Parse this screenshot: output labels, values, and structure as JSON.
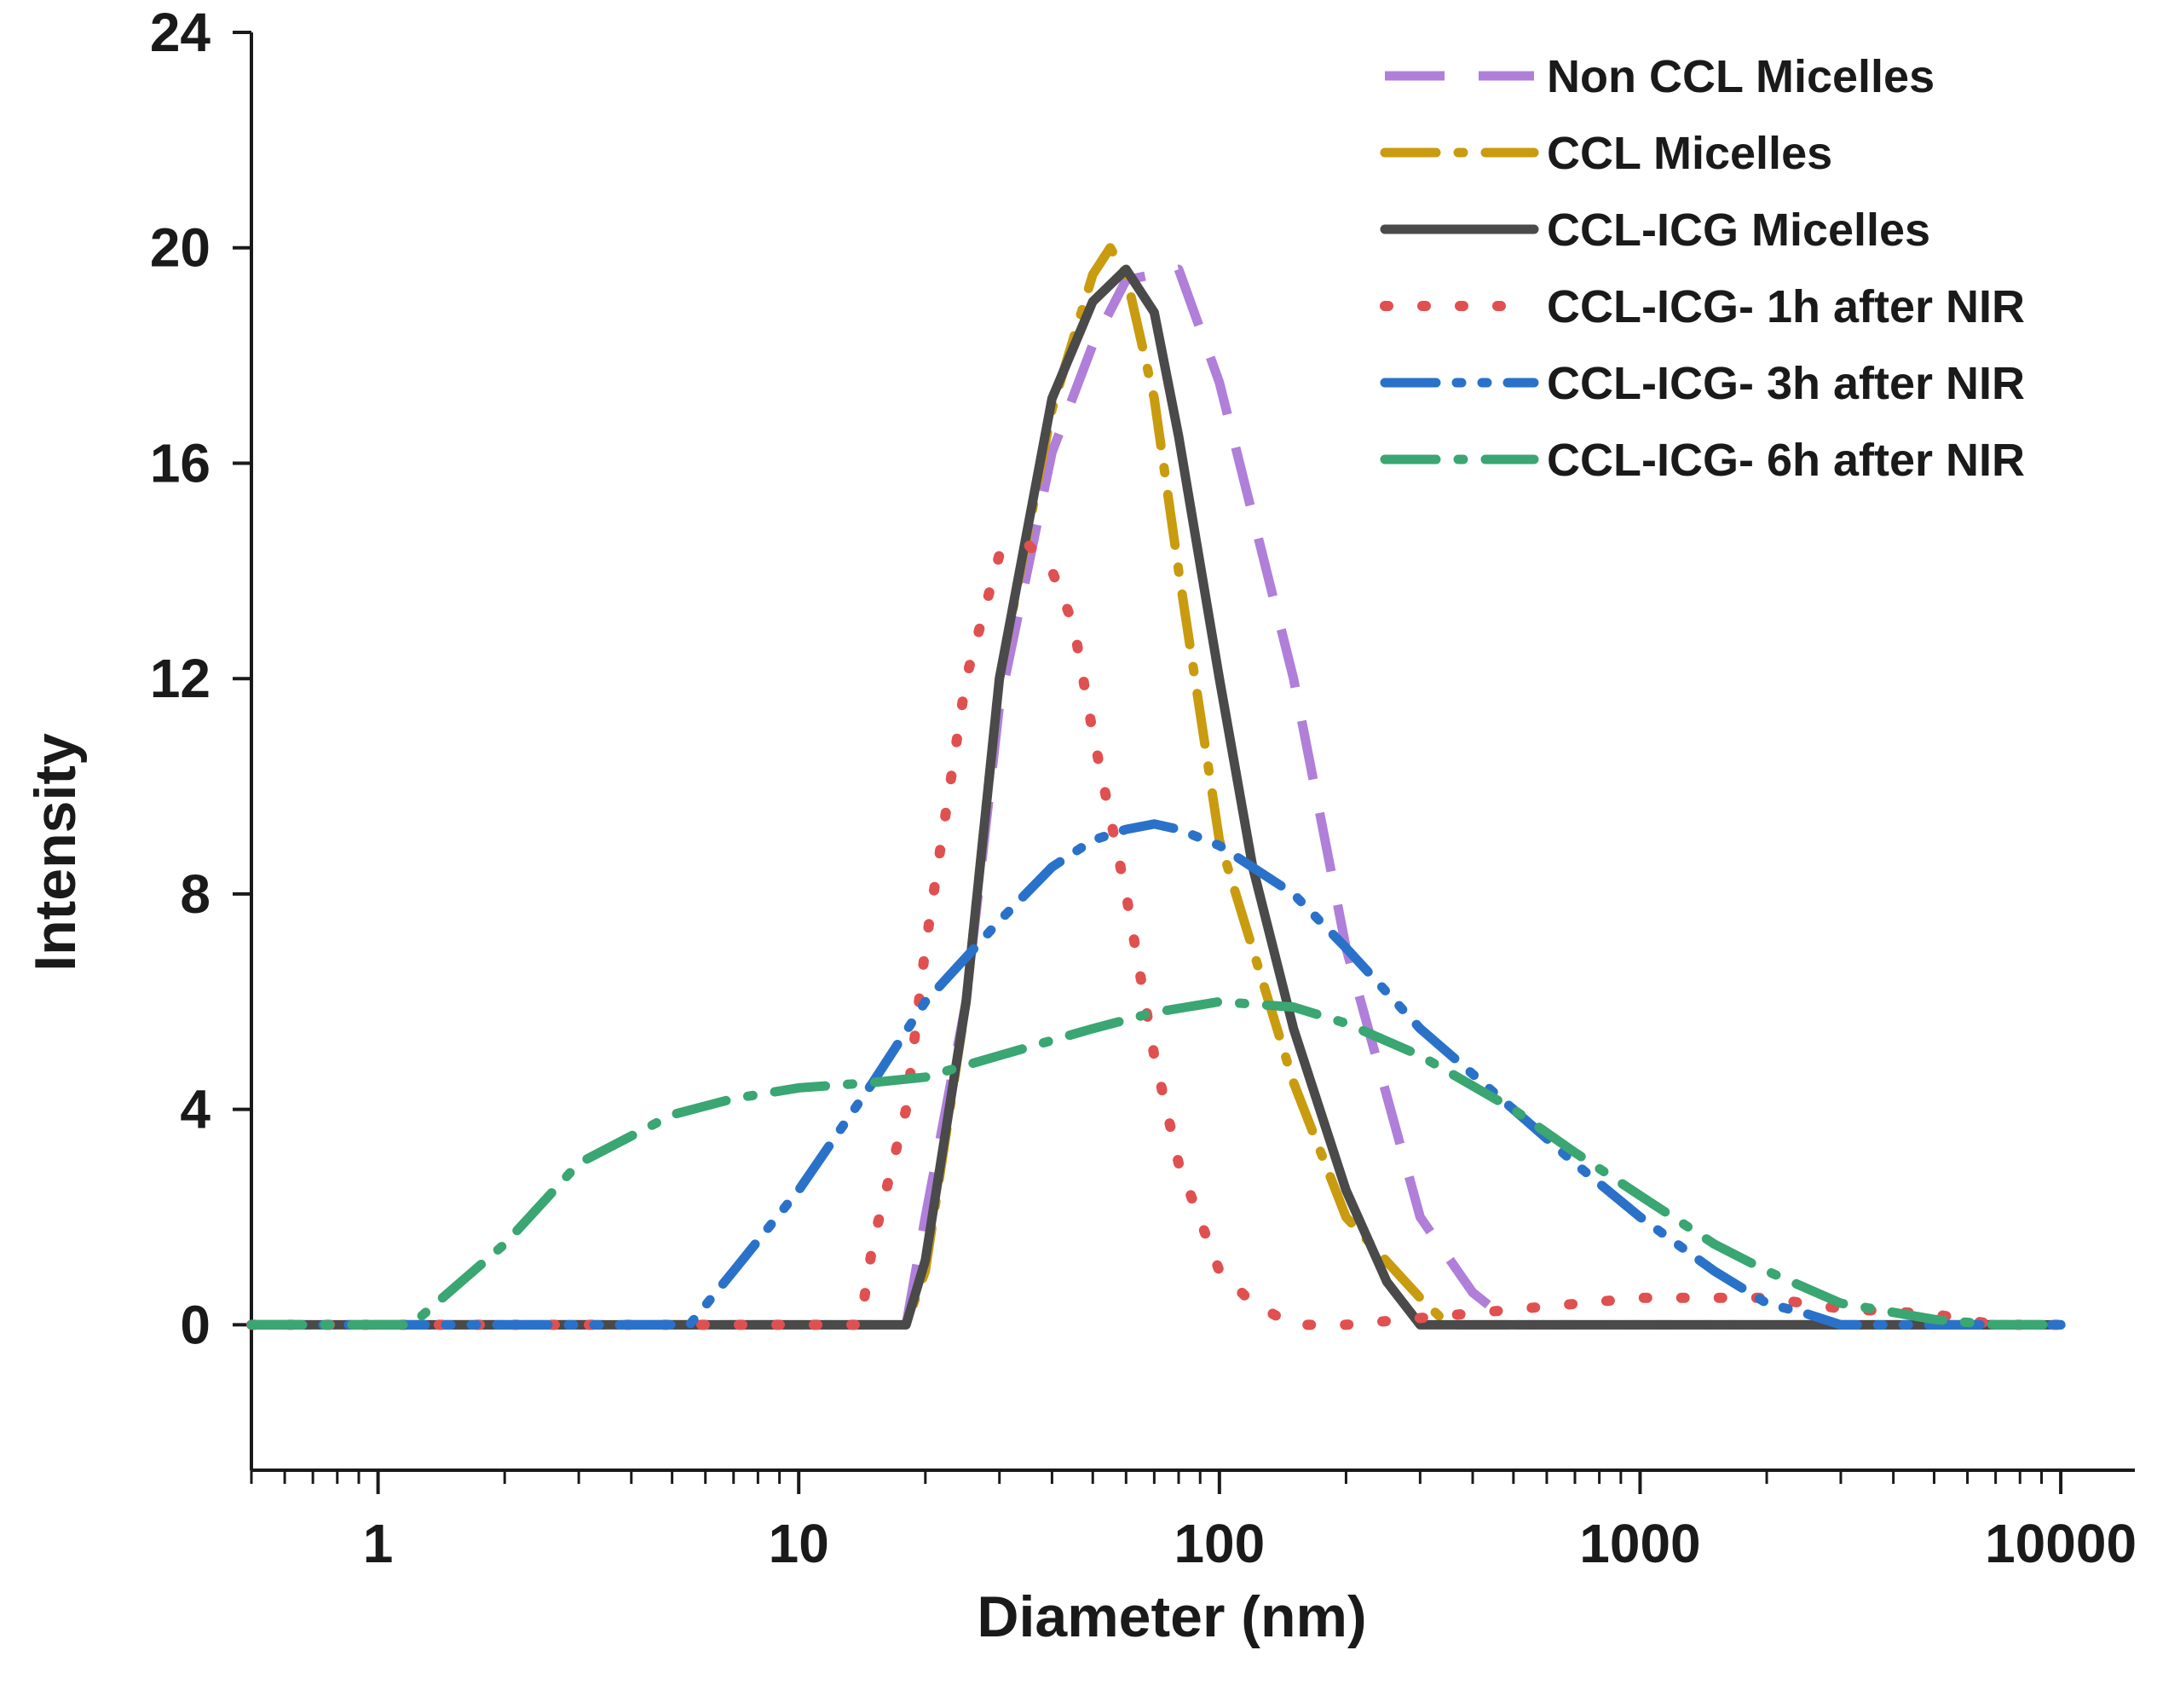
{
  "chart_data": {
    "type": "line",
    "title": "",
    "xlabel": "Diameter (nm)",
    "ylabel": "Intensity",
    "xscale": "log",
    "xlim": [
      0.5,
      15000
    ],
    "ylim": [
      -2.7,
      24
    ],
    "y_ticks": [
      0,
      4,
      8,
      12,
      16,
      20,
      24
    ],
    "x_ticks": [
      1,
      10,
      100,
      1000,
      10000
    ],
    "y_tick_labels": [
      "0",
      "4",
      "8",
      "12",
      "16",
      "20",
      "24"
    ],
    "x_tick_labels": [
      "1",
      "10",
      "100",
      "1000",
      "10000"
    ],
    "legend_position": "top-right",
    "series": [
      {
        "name": "Non CCL Micelles",
        "color": "#b07fd9",
        "dash": "dashed",
        "x": [
          0.5,
          18,
          20,
          25,
          30,
          40,
          50,
          60,
          80,
          100,
          150,
          200,
          300,
          400,
          500,
          10000
        ],
        "y": [
          0,
          0,
          2,
          6,
          11.5,
          16.2,
          18.2,
          19.4,
          19.6,
          17.5,
          12,
          7,
          2,
          0.6,
          0,
          0
        ]
      },
      {
        "name": "CCL Micelles",
        "color": "#c99b0f",
        "dash": "dash-dot",
        "x": [
          0.5,
          18,
          20,
          25,
          30,
          40,
          50,
          55,
          60,
          70,
          80,
          100,
          150,
          200,
          300,
          350,
          10000
        ],
        "y": [
          0,
          0,
          1,
          6,
          12,
          17,
          19.5,
          20,
          19.5,
          17.2,
          14,
          9,
          4.5,
          2,
          0.5,
          0,
          0
        ]
      },
      {
        "name": "CCL-ICG Micelles",
        "color": "#4a4a4a",
        "dash": "solid",
        "x": [
          0.5,
          18,
          20,
          25,
          30,
          40,
          50,
          60,
          70,
          80,
          100,
          120,
          150,
          200,
          250,
          300,
          10000
        ],
        "y": [
          0,
          0,
          1.2,
          6,
          12,
          17.2,
          19,
          19.6,
          18.8,
          16.5,
          12,
          8.5,
          5.5,
          2.5,
          0.8,
          0,
          0
        ]
      },
      {
        "name": "CCL-ICG- 1h after NIR",
        "color": "#e05050",
        "dash": "dotted",
        "x": [
          0.5,
          14,
          15,
          18,
          20,
          25,
          30,
          35,
          40,
          45,
          50,
          60,
          70,
          80,
          100,
          120,
          150,
          180,
          200,
          1000,
          1500,
          2000,
          3000,
          5000,
          7000,
          10000
        ],
        "y": [
          0,
          0,
          1.5,
          4,
          7,
          12,
          14.3,
          14.5,
          14,
          13,
          11,
          8,
          5,
          3,
          1,
          0.4,
          0,
          0,
          0,
          0.5,
          0.5,
          0.5,
          0.3,
          0.2,
          0,
          0
        ]
      },
      {
        "name": "CCL-ICG- 3h after NIR",
        "color": "#2a72c9",
        "dash": "dash-dot-dot",
        "x": [
          0.5,
          5.5,
          7,
          10,
          15,
          20,
          30,
          40,
          50,
          60,
          70,
          80,
          100,
          150,
          200,
          300,
          500,
          700,
          1000,
          1500,
          2000,
          2500,
          3000,
          10000
        ],
        "y": [
          0,
          0,
          1,
          2.5,
          4.5,
          6,
          7.5,
          8.5,
          9,
          9.2,
          9.3,
          9.2,
          8.9,
          8,
          7,
          5.5,
          4,
          3,
          2,
          1,
          0.4,
          0.2,
          0,
          0
        ]
      },
      {
        "name": "CCL-ICG- 6h after NIR",
        "color": "#3aa672",
        "dash": "dash-dot",
        "x": [
          0.5,
          1.2,
          2,
          3,
          5,
          7,
          10,
          15,
          20,
          30,
          50,
          70,
          100,
          150,
          200,
          300,
          500,
          700,
          1000,
          1500,
          2000,
          3000,
          5000,
          7000,
          10000
        ],
        "y": [
          0,
          0,
          1.5,
          3,
          3.9,
          4.2,
          4.4,
          4.5,
          4.6,
          5,
          5.5,
          5.8,
          6,
          5.9,
          5.6,
          5,
          4,
          3.2,
          2.4,
          1.5,
          1,
          0.4,
          0.1,
          0,
          0
        ]
      }
    ]
  }
}
